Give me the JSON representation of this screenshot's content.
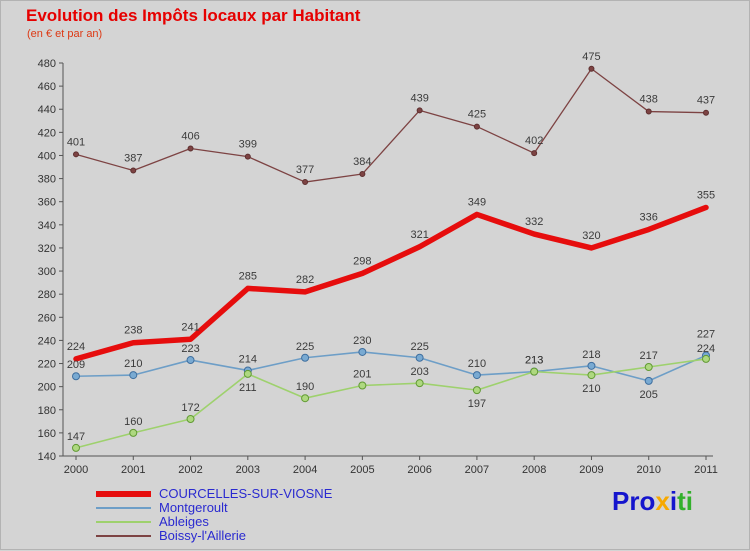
{
  "title": "Evolution des Impôts locaux par Habitant",
  "subtitle": "(en € et par an)",
  "colors": {
    "title": "#e60000",
    "subtitle": "#dd3914",
    "axis": "#555555",
    "tick_label": "#333333",
    "value_label": "#3b3b3b",
    "legend_text": "#2a2ad0",
    "background": "#d4d4d4"
  },
  "chart_data": {
    "type": "line",
    "x": [
      2000,
      2001,
      2002,
      2003,
      2004,
      2005,
      2006,
      2007,
      2008,
      2009,
      2010,
      2011
    ],
    "ylim": [
      140,
      480
    ],
    "ytick_step": 20,
    "grid": false,
    "legend_position": "bottom-left",
    "draw_order": [
      1,
      2,
      3,
      0
    ],
    "series": [
      {
        "name": "COURCELLES-SUR-VIOSNE",
        "color": "#e60d0d",
        "width": 5.5,
        "marker": false,
        "values": [
          224,
          238,
          241,
          285,
          282,
          298,
          321,
          349,
          332,
          320,
          336,
          355
        ],
        "label_dy": [
          -9,
          -9,
          -9,
          -9,
          -9,
          -9,
          -9,
          -9,
          -9,
          -9,
          -9,
          -9
        ]
      },
      {
        "name": "Montgeroult",
        "color": "#6d9ec7",
        "width": 1.6,
        "marker": true,
        "marker_fill": "#79aad2",
        "marker_stroke": "#3f6f9f",
        "marker_r": 3.5,
        "values": [
          209,
          210,
          223,
          214,
          225,
          230,
          225,
          210,
          213,
          218,
          205,
          227
        ],
        "label_dy": [
          -8,
          -8,
          -8,
          -8,
          -8,
          -8,
          -8,
          -8,
          -8,
          -8,
          17,
          -18
        ]
      },
      {
        "name": "Ableiges",
        "color": "#9ed16d",
        "width": 1.6,
        "marker": true,
        "marker_fill": "#aed880",
        "marker_stroke": "#619a33",
        "marker_r": 3.5,
        "values": [
          147,
          160,
          172,
          211,
          190,
          201,
          203,
          197,
          213,
          210,
          217,
          224
        ],
        "label_dy": [
          -8,
          -8,
          -8,
          17,
          -8,
          -8,
          -8,
          17,
          -8,
          17,
          -8,
          -7
        ]
      },
      {
        "name": "Boissy-l'Aillerie",
        "color": "#7d4343",
        "width": 1.3,
        "marker": true,
        "marker_fill": "#7d4343",
        "marker_stroke": "#5d2f2f",
        "marker_r": 2.5,
        "values": [
          401,
          387,
          406,
          399,
          377,
          384,
          439,
          425,
          402,
          475,
          438,
          437
        ],
        "label_dy": [
          -9,
          -9,
          -9,
          -9,
          -9,
          -9,
          -9,
          -9,
          -9,
          -9,
          -9,
          -9
        ]
      }
    ]
  },
  "logo": {
    "text": "Proxiti",
    "letters": [
      {
        "ch": "P",
        "color": "#1515cd"
      },
      {
        "ch": "r",
        "color": "#1515cd"
      },
      {
        "ch": "o",
        "color": "#1515cd"
      },
      {
        "ch": "x",
        "color": "#f7a900"
      },
      {
        "ch": "i",
        "color": "#1515cd"
      },
      {
        "ch": "t",
        "color": "#33b02c"
      },
      {
        "ch": "i",
        "color": "#33b02c"
      }
    ]
  }
}
